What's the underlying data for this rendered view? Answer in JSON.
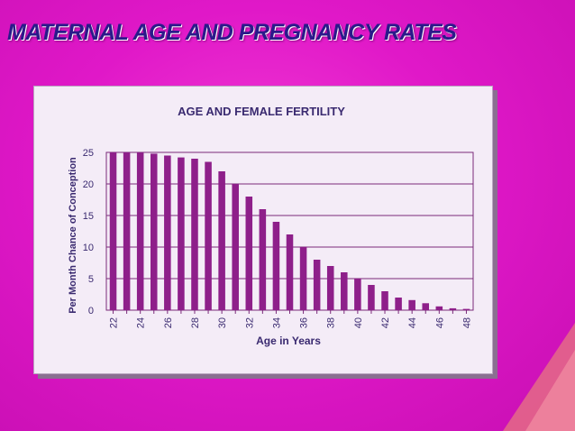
{
  "slide": {
    "title": "MATERNAL AGE AND PREGNANCY RATES"
  },
  "colors": {
    "bar": "#8e1f8a",
    "grid": "#7a2a7a",
    "text": "#3a2a70",
    "panel": "#f4ecf7"
  },
  "chart_data": {
    "type": "bar",
    "title": "AGE AND FEMALE FERTILITY",
    "xlabel": "Age in Years",
    "ylabel": "Per Month Chance of Conception",
    "ylim": [
      0,
      25
    ],
    "yticks": [
      0,
      5,
      10,
      15,
      20,
      25
    ],
    "grid": true,
    "categories": [
      22,
      23,
      24,
      25,
      26,
      27,
      28,
      29,
      30,
      31,
      32,
      33,
      34,
      35,
      36,
      37,
      38,
      39,
      40,
      41,
      42,
      43,
      44,
      45,
      46,
      47,
      48
    ],
    "tick_labels": [
      "22",
      "24",
      "26",
      "28",
      "30",
      "32",
      "34",
      "36",
      "38",
      "40",
      "42",
      "44",
      "46",
      "48"
    ],
    "values": [
      25,
      25,
      25,
      24.8,
      24.5,
      24.2,
      24,
      23.5,
      22,
      20,
      18,
      16,
      14,
      12,
      10,
      8,
      7,
      6,
      5,
      4,
      3,
      2,
      1.6,
      1.1,
      0.6,
      0.3,
      0.2
    ]
  }
}
